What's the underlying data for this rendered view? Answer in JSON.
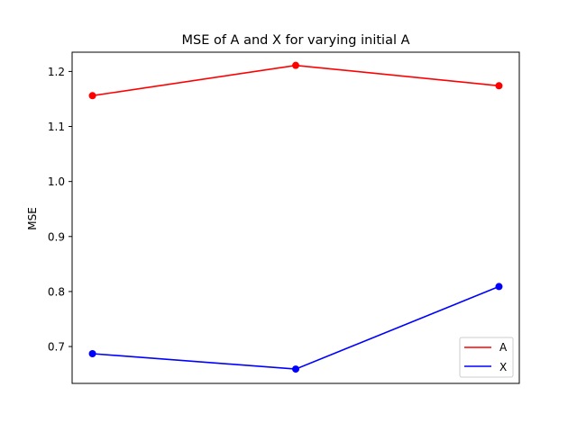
{
  "chart_data": {
    "type": "line",
    "title": "MSE of A and X for varying initial A",
    "xlabel": "",
    "ylabel": "MSE",
    "x": [
      0,
      1,
      2
    ],
    "xlim": [
      -0.1,
      2.1
    ],
    "ylim": [
      0.633,
      1.235
    ],
    "yticks": [
      0.7,
      0.8,
      0.9,
      1.0,
      1.1,
      1.2
    ],
    "ytick_labels": [
      "0.7",
      "0.8",
      "0.9",
      "1.0",
      "1.1",
      "1.2"
    ],
    "x_tick_labels_shown": false,
    "grid": false,
    "legend_position": "lower right",
    "series": [
      {
        "name": "A",
        "color": "#ff0000",
        "values": [
          1.156,
          1.211,
          1.174
        ]
      },
      {
        "name": "X",
        "color": "#0000ff",
        "values": [
          0.687,
          0.659,
          0.809
        ]
      }
    ]
  }
}
